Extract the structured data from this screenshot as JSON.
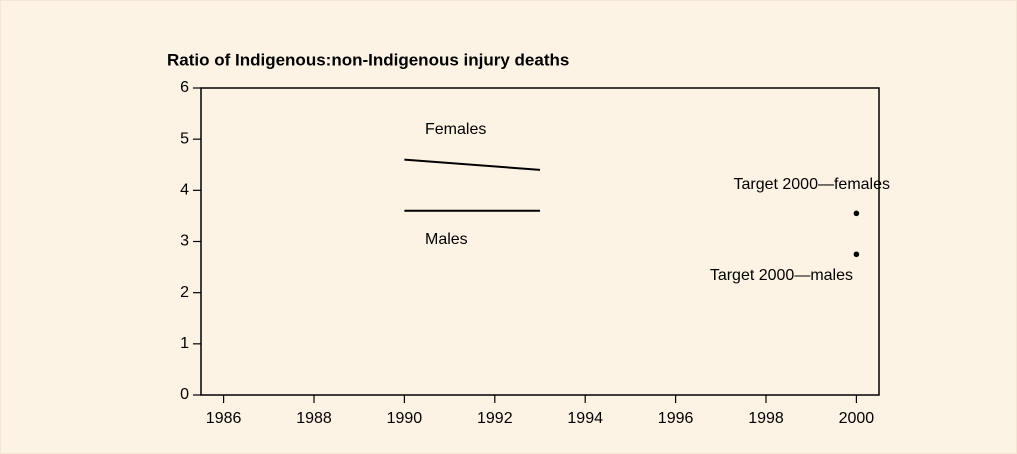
{
  "chart_data": {
    "type": "line",
    "title": "Ratio of Indigenous:non-Indigenous injury deaths",
    "xlim": [
      1985.5,
      2000.5
    ],
    "xticks": [
      1986,
      1988,
      1990,
      1992,
      1994,
      1996,
      1998,
      2000
    ],
    "ylim": [
      0,
      6
    ],
    "yticks": [
      0,
      1,
      2,
      3,
      4,
      5,
      6
    ],
    "series": [
      {
        "name": "Females",
        "color": "#000000",
        "style": "line",
        "x": [
          1990,
          1993
        ],
        "values": [
          4.6,
          4.4
        ]
      },
      {
        "name": "Males",
        "color": "#000000",
        "style": "line",
        "x": [
          1990,
          1993
        ],
        "values": [
          3.6,
          3.6
        ]
      },
      {
        "name": "Target 2000—females",
        "color": "#000000",
        "style": "point",
        "x": [
          2000
        ],
        "values": [
          3.55
        ]
      },
      {
        "name": "Target 2000—males",
        "color": "#000000",
        "style": "point",
        "x": [
          2000
        ],
        "values": [
          2.75
        ]
      }
    ]
  }
}
